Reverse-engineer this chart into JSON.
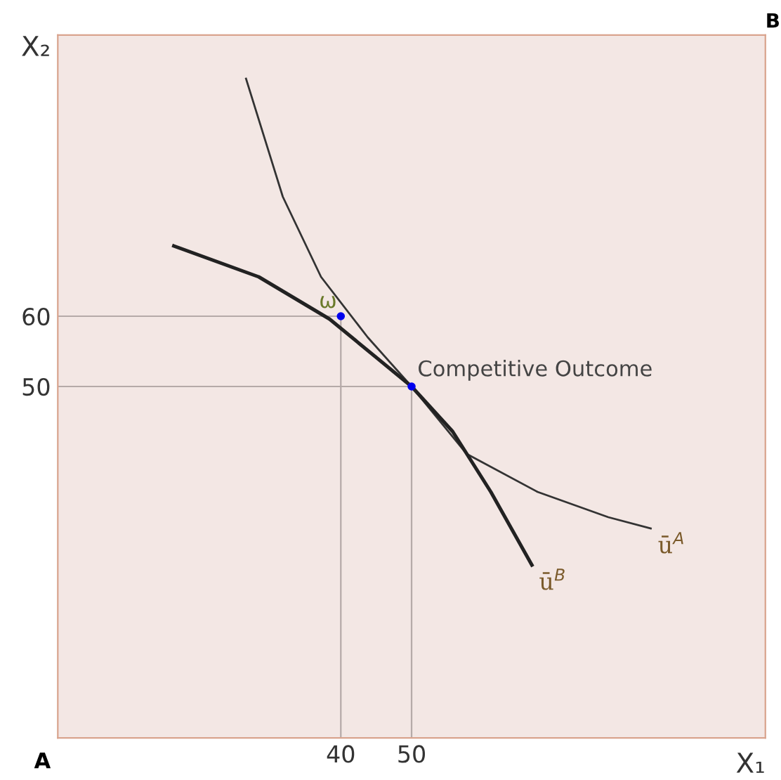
{
  "chart_data": {
    "type": "line",
    "xlabel": "X₁",
    "ylabel": "X₂",
    "xlim": [
      0,
      100
    ],
    "ylim": [
      0,
      100
    ],
    "xticks": [
      40,
      50
    ],
    "yticks": [
      50,
      60
    ],
    "grid": false,
    "legend": false,
    "series": [
      {
        "color": "#b5aaa8",
        "x": [
          0,
          40,
          40
        ],
        "values": [
          60,
          60,
          0
        ]
      },
      {
        "color": "#b5aaa8",
        "x": [
          0,
          50,
          50
        ],
        "values": [
          50,
          50,
          0
        ]
      },
      {
        "name": "ū$^{A}$",
        "color": "#333333",
        "x": [
          26.6,
          31.8,
          37.2,
          43.8,
          50,
          57.8,
          67.8,
          77.8,
          83.8
        ],
        "values": [
          93.8,
          77,
          65.6,
          57,
          50,
          40.4,
          35,
          31.4,
          29.8
        ]
      },
      {
        "name": "ū$^{B}$",
        "color": "#222222",
        "x": [
          16.4,
          28.4,
          38.4,
          50,
          55.8,
          61.2,
          67
        ],
        "values": [
          70,
          65.6,
          59.6,
          50,
          43.6,
          35,
          24.6
        ]
      },
      {
        "type": "scatter",
        "color": "#0000ee",
        "x": [
          40,
          50
        ],
        "values": [
          60,
          50
        ]
      }
    ],
    "annotations": [
      {
        "text": "ω",
        "x": 40,
        "y": 60
      },
      {
        "text": "Competitive Outcome",
        "x": 50,
        "y": 50
      },
      "A",
      "B"
    ]
  }
}
